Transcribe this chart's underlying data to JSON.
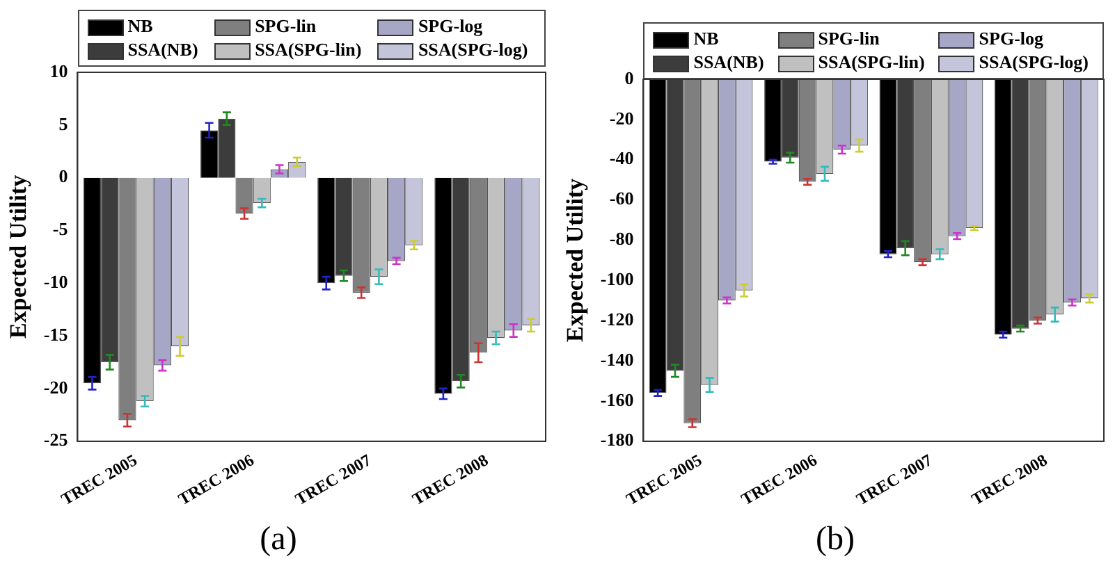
{
  "chart_data": [
    {
      "type": "bar",
      "ylabel": "Expected Utility",
      "categories": [
        "TREC 2005",
        "TREC 2006",
        "TREC 2007",
        "TREC 2008"
      ],
      "ylim": [
        -25,
        10
      ],
      "yticks": [
        -25,
        -20,
        -15,
        -10,
        -5,
        0,
        5,
        10
      ],
      "grid": false,
      "legend": "top",
      "annotations": [
        "(a)"
      ],
      "series": [
        {
          "name": "NB",
          "color": "#000000",
          "values": [
            -19.5,
            4.5,
            -10,
            -20.5
          ],
          "errors": [
            0.6,
            0.7,
            0.6,
            0.5
          ]
        },
        {
          "name": "SSA(NB)",
          "color": "#3c3c3c",
          "values": [
            -17.5,
            5.6,
            -9.3,
            -19.3
          ],
          "errors": [
            0.7,
            0.6,
            0.5,
            0.6
          ]
        },
        {
          "name": "SPG-lin",
          "color": "#7f7f7f",
          "values": [
            -23,
            -3.4,
            -10.9,
            -16.6
          ],
          "errors": [
            0.6,
            0.5,
            0.5,
            0.9
          ]
        },
        {
          "name": "SSA(SPG-lin)",
          "color": "#c0c0c0",
          "values": [
            -21.2,
            -2.4,
            -9.4,
            -15.2
          ],
          "errors": [
            0.5,
            0.4,
            0.7,
            0.6
          ]
        },
        {
          "name": "SPG-log",
          "color": "#a6a6c6",
          "values": [
            -17.8,
            0.8,
            -7.9,
            -14.5
          ],
          "errors": [
            0.5,
            0.4,
            0.3,
            0.6
          ]
        },
        {
          "name": "SSA(SPG-log)",
          "color": "#c4c4da",
          "values": [
            -16,
            1.5,
            -6.4,
            -14
          ],
          "errors": [
            0.9,
            0.4,
            0.4,
            0.6
          ]
        }
      ]
    },
    {
      "type": "bar",
      "ylabel": "Expected Utility",
      "categories": [
        "TREC 2005",
        "TREC 2006",
        "TREC 2007",
        "TREC 2008"
      ],
      "ylim": [
        -180,
        0
      ],
      "yticks": [
        -180,
        -160,
        -140,
        -120,
        -100,
        -80,
        -60,
        -40,
        -20,
        0
      ],
      "grid": false,
      "legend": "top",
      "annotations": [
        "(b)"
      ],
      "series": [
        {
          "name": "NB",
          "color": "#000000",
          "values": [
            -156,
            -41,
            -87,
            -127
          ],
          "errors": [
            1.5,
            1,
            1.5,
            1.5
          ]
        },
        {
          "name": "SSA(NB)",
          "color": "#3c3c3c",
          "values": [
            -145,
            -39,
            -84,
            -124
          ],
          "errors": [
            3,
            2.5,
            3.5,
            1.5
          ]
        },
        {
          "name": "SPG-lin",
          "color": "#7f7f7f",
          "values": [
            -171,
            -51,
            -91,
            -120
          ],
          "errors": [
            2,
            1.5,
            1.5,
            1.5
          ]
        },
        {
          "name": "SSA(SPG-lin)",
          "color": "#c0c0c0",
          "values": [
            -152,
            -47,
            -87,
            -117
          ],
          "errors": [
            3.5,
            3.5,
            2.5,
            3.5
          ]
        },
        {
          "name": "SPG-log",
          "color": "#a6a6c6",
          "values": [
            -110,
            -35,
            -78,
            -111
          ],
          "errors": [
            1.5,
            2,
            1.5,
            1.5
          ]
        },
        {
          "name": "SSA(SPG-log)",
          "color": "#c4c4da",
          "values": [
            -105,
            -33,
            -74,
            -109
          ],
          "errors": [
            3,
            3,
            1,
            2
          ]
        }
      ]
    }
  ]
}
